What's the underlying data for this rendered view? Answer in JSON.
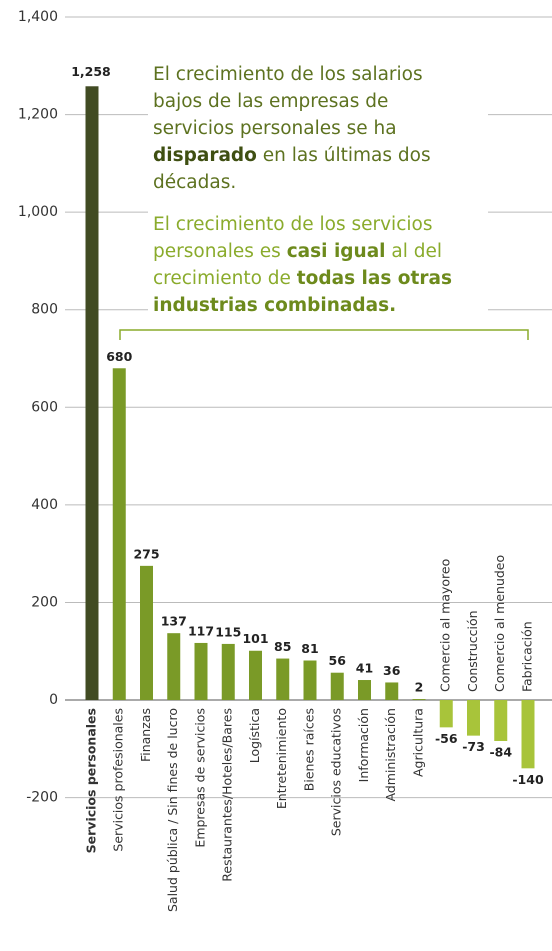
{
  "chart_data": {
    "type": "bar",
    "categories": [
      "Servicios personales",
      "Servicios profesionales",
      "Finanzas",
      "Salud pública / Sin fines de lucro",
      "Empresas de servicios",
      "Restaurantes/Hoteles/Bares",
      "Logística",
      "Entretenimiento",
      "Bienes raíces",
      "Servicios educativos",
      "Información",
      "Administración",
      "Agricultura",
      "Comercio al mayoreo",
      "Construcción",
      "Comercio al menudeo",
      "Fabricación"
    ],
    "values": [
      1258,
      680,
      275,
      137,
      117,
      115,
      101,
      85,
      81,
      56,
      41,
      36,
      2,
      -56,
      -73,
      -84,
      -140
    ],
    "value_labels": [
      "1,258",
      "680",
      "275",
      "137",
      "117",
      "115",
      "101",
      "85",
      "81",
      "56",
      "41",
      "36",
      "2",
      "-56",
      "-73",
      "-84",
      "-140"
    ],
    "colors": {
      "highlight": "#414b23",
      "positive": "#7a9a27",
      "negative": "#a8c43a"
    },
    "ylim": [
      -200,
      1400
    ],
    "yticks": [
      -200,
      0,
      200,
      400,
      600,
      800,
      {
        "value": 1000,
        "label": "1,000"
      },
      {
        "value": 1200,
        "label": "1,200"
      },
      {
        "value": 1400,
        "label": "1,400"
      }
    ],
    "grid": true,
    "annotations": [
      {
        "color": "#5d7220",
        "lines": [
          [
            {
              "text": "El crecimiento de los salarios",
              "bold": false
            }
          ],
          [
            {
              "text": "bajos de las empresas de",
              "bold": false
            }
          ],
          [
            {
              "text": "servicios personales se ha",
              "bold": false
            }
          ],
          [
            {
              "text": "disparado",
              "bold": true
            },
            {
              "text": " en las últimas dos",
              "bold": false
            }
          ],
          [
            {
              "text": "décadas.",
              "bold": false
            }
          ]
        ]
      },
      {
        "color": "#8aab2c",
        "lines": [
          [
            {
              "text": "El crecimiento de los servicios",
              "bold": false
            }
          ],
          [
            {
              "text": "personales es ",
              "bold": false
            },
            {
              "text": "casi igual",
              "bold": true
            },
            {
              "text": " al del",
              "bold": false
            }
          ],
          [
            {
              "text": "crecimiento de ",
              "bold": false
            },
            {
              "text": "todas las otras",
              "bold": true
            }
          ],
          [
            {
              "text": "industrias combinadas.",
              "bold": true
            }
          ]
        ]
      }
    ]
  }
}
